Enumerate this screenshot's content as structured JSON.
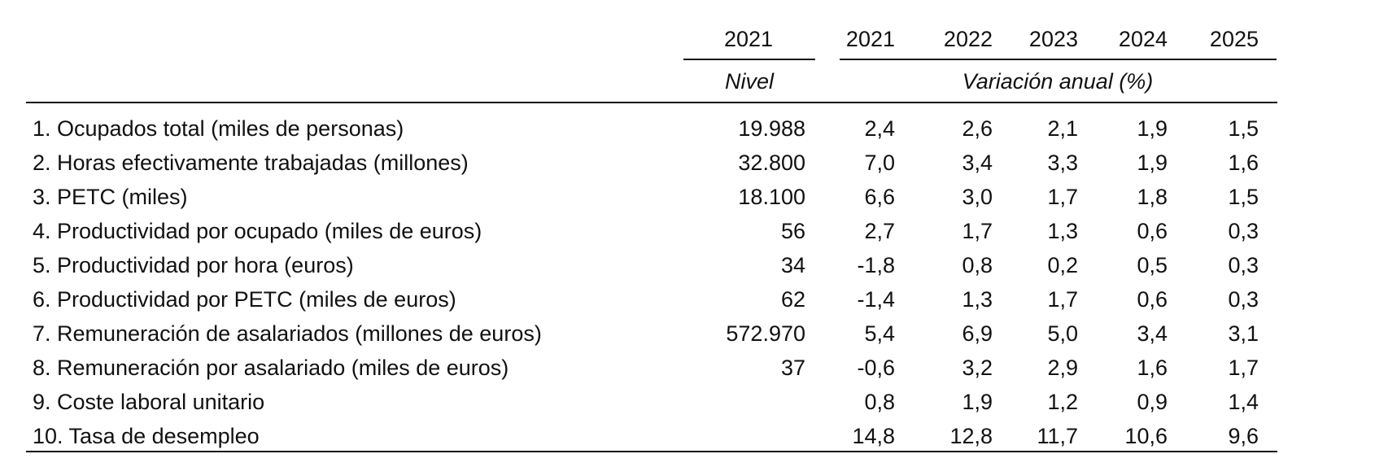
{
  "header": {
    "level_year": "2021",
    "years": [
      "2021",
      "2022",
      "2023",
      "2024",
      "2025"
    ],
    "level_label": "Nivel",
    "variation_label": "Variación anual (%)"
  },
  "rows": [
    {
      "label": "1. Ocupados total (miles de personas)",
      "level": "19.988",
      "values": [
        "2,4",
        "2,6",
        "2,1",
        "1,9",
        "1,5"
      ]
    },
    {
      "label": "2. Horas efectivamente trabajadas (millones)",
      "level": "32.800",
      "values": [
        "7,0",
        "3,4",
        "3,3",
        "1,9",
        "1,6"
      ]
    },
    {
      "label": "3. PETC (miles)",
      "level": "18.100",
      "values": [
        "6,6",
        "3,0",
        "1,7",
        "1,8",
        "1,5"
      ]
    },
    {
      "label": "4. Productividad por ocupado (miles de euros)",
      "level": "56",
      "values": [
        "2,7",
        "1,7",
        "1,3",
        "0,6",
        "0,3"
      ]
    },
    {
      "label": "5. Productividad por hora (euros)",
      "level": "34",
      "values": [
        "-1,8",
        "0,8",
        "0,2",
        "0,5",
        "0,3"
      ]
    },
    {
      "label": "6. Productividad por PETC (miles de euros)",
      "level": "62",
      "values": [
        "-1,4",
        "1,3",
        "1,7",
        "0,6",
        "0,3"
      ]
    },
    {
      "label": "7. Remuneración de asalariados (millones de euros)",
      "level": "572.970",
      "values": [
        "5,4",
        "6,9",
        "5,0",
        "3,4",
        "3,1"
      ]
    },
    {
      "label": "8. Remuneración por asalariado (miles de euros)",
      "level": "37",
      "values": [
        "-0,6",
        "3,2",
        "2,9",
        "1,6",
        "1,7"
      ]
    },
    {
      "label": "9. Coste laboral unitario",
      "level": "",
      "values": [
        "0,8",
        "1,9",
        "1,2",
        "0,9",
        "1,4"
      ]
    },
    {
      "label": "10. Tasa de desempleo",
      "level": "",
      "values": [
        "14,8",
        "12,8",
        "11,7",
        "10,6",
        "9,6"
      ]
    }
  ]
}
